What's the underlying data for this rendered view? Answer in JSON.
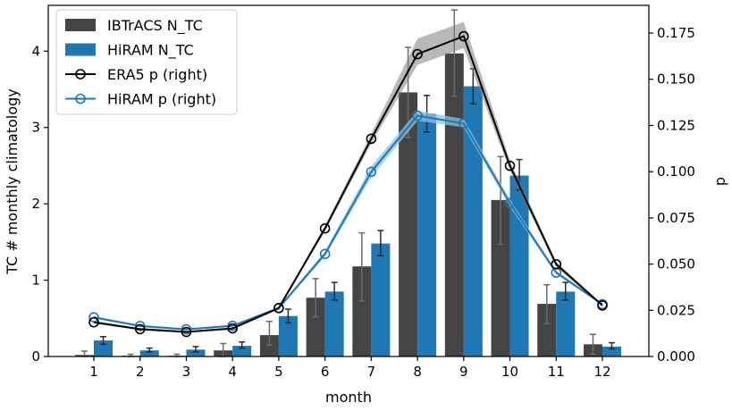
{
  "chart_data": {
    "type": "bar",
    "title": "",
    "xlabel": "month",
    "ylabel": "TC # monthly climatology",
    "y2label": "p",
    "categories": [
      1,
      2,
      3,
      4,
      5,
      6,
      7,
      8,
      9,
      10,
      11,
      12
    ],
    "ylim": [
      0,
      4.6
    ],
    "y2lim": [
      0,
      0.19
    ],
    "yticks": [
      0,
      1,
      2,
      3,
      4
    ],
    "y2ticks": [
      0.0,
      0.025,
      0.05,
      0.075,
      0.1,
      0.125,
      0.15,
      0.175
    ],
    "y2tick_labels": [
      "0.000",
      "0.025",
      "0.050",
      "0.075",
      "0.100",
      "0.125",
      "0.150",
      "0.175"
    ],
    "legend_position": "upper-left",
    "bar_series": [
      {
        "name": "IBTrACS N_TC",
        "color": "#444444",
        "values": [
          0.02,
          0.01,
          0.01,
          0.08,
          0.28,
          0.77,
          1.18,
          3.46,
          3.97,
          2.05,
          0.69,
          0.16
        ],
        "err_low": [
          0.0,
          0.0,
          0.0,
          0.0,
          0.15,
          0.52,
          0.73,
          2.87,
          3.41,
          1.47,
          0.43,
          0.03
        ],
        "err_high": [
          0.07,
          0.03,
          0.03,
          0.17,
          0.46,
          1.02,
          1.62,
          4.05,
          4.54,
          2.62,
          0.94,
          0.29
        ]
      },
      {
        "name": "HiRAM N_TC",
        "color": "#1f77b4",
        "values": [
          0.21,
          0.08,
          0.09,
          0.14,
          0.53,
          0.85,
          1.48,
          3.18,
          3.54,
          2.37,
          0.85,
          0.13
        ],
        "err_low": [
          0.16,
          0.06,
          0.06,
          0.11,
          0.44,
          0.74,
          1.32,
          2.94,
          3.31,
          2.18,
          0.74,
          0.1
        ],
        "err_high": [
          0.26,
          0.11,
          0.13,
          0.19,
          0.62,
          0.97,
          1.65,
          3.42,
          3.77,
          2.58,
          0.97,
          0.18
        ]
      }
    ],
    "line_series": [
      {
        "name": "ERA5 p (right)",
        "color": "#000000",
        "band_color": "#808080",
        "values": [
          0.0185,
          0.0148,
          0.0133,
          0.0152,
          0.0262,
          0.0693,
          0.1178,
          0.1636,
          0.1733,
          0.1032,
          0.0499,
          0.0276
        ],
        "band_low": [
          0.0178,
          0.0142,
          0.0128,
          0.0146,
          0.0255,
          0.0678,
          0.1152,
          0.1578,
          0.1668,
          0.1005,
          0.0485,
          0.027
        ],
        "band_high": [
          0.0193,
          0.0154,
          0.0138,
          0.0158,
          0.0269,
          0.0708,
          0.1205,
          0.172,
          0.181,
          0.106,
          0.0513,
          0.0282
        ]
      },
      {
        "name": "HiRAM p (right)",
        "color": "#1f77b4",
        "band_color": "#8ec1e6",
        "values": [
          0.0212,
          0.0165,
          0.0147,
          0.0166,
          0.0262,
          0.0555,
          0.0999,
          0.1303,
          0.1261,
          0.083,
          0.0454,
          0.0283
        ],
        "band_low": [
          0.0205,
          0.0159,
          0.0142,
          0.016,
          0.0255,
          0.054,
          0.097,
          0.1275,
          0.124,
          0.081,
          0.0445,
          0.0277
        ],
        "band_high": [
          0.0219,
          0.0171,
          0.0152,
          0.0172,
          0.0269,
          0.057,
          0.103,
          0.133,
          0.1285,
          0.085,
          0.0465,
          0.0289
        ]
      }
    ]
  }
}
